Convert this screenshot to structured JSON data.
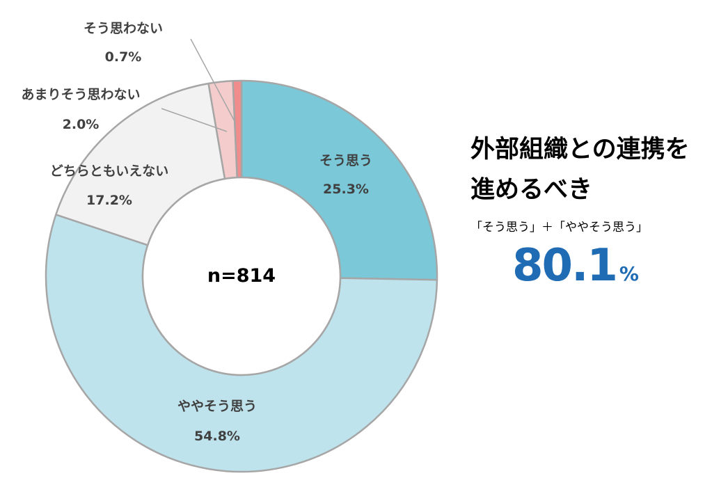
{
  "chart_data": {
    "type": "pie",
    "variant": "donut",
    "center_label": "n=814",
    "slices": [
      {
        "label": "そう思う",
        "value": 25.3,
        "value_label": "25.3%",
        "color": "#7AC8D8"
      },
      {
        "label": "ややそう思う",
        "value": 54.8,
        "value_label": "54.8%",
        "color": "#BEE3EC"
      },
      {
        "label": "どちらともいえない",
        "value": 17.2,
        "value_label": "17.2%",
        "color": "#F2F2F2"
      },
      {
        "label": "あまりそう思わない",
        "value": 2.0,
        "value_label": "2.0%",
        "color": "#F4CCCC"
      },
      {
        "label": "そう思わない",
        "value": 0.7,
        "value_label": "0.7%",
        "color": "#F08C8C"
      }
    ],
    "border_color": "#A6A6A6"
  },
  "summary": {
    "headline_line1": "外部組織との連携を",
    "headline_line2": "進めるべき",
    "formula": "「そう思う」＋「ややそう思う」",
    "total_value": "80.1",
    "total_unit": "%",
    "accent_color": "#1F6CB5"
  }
}
